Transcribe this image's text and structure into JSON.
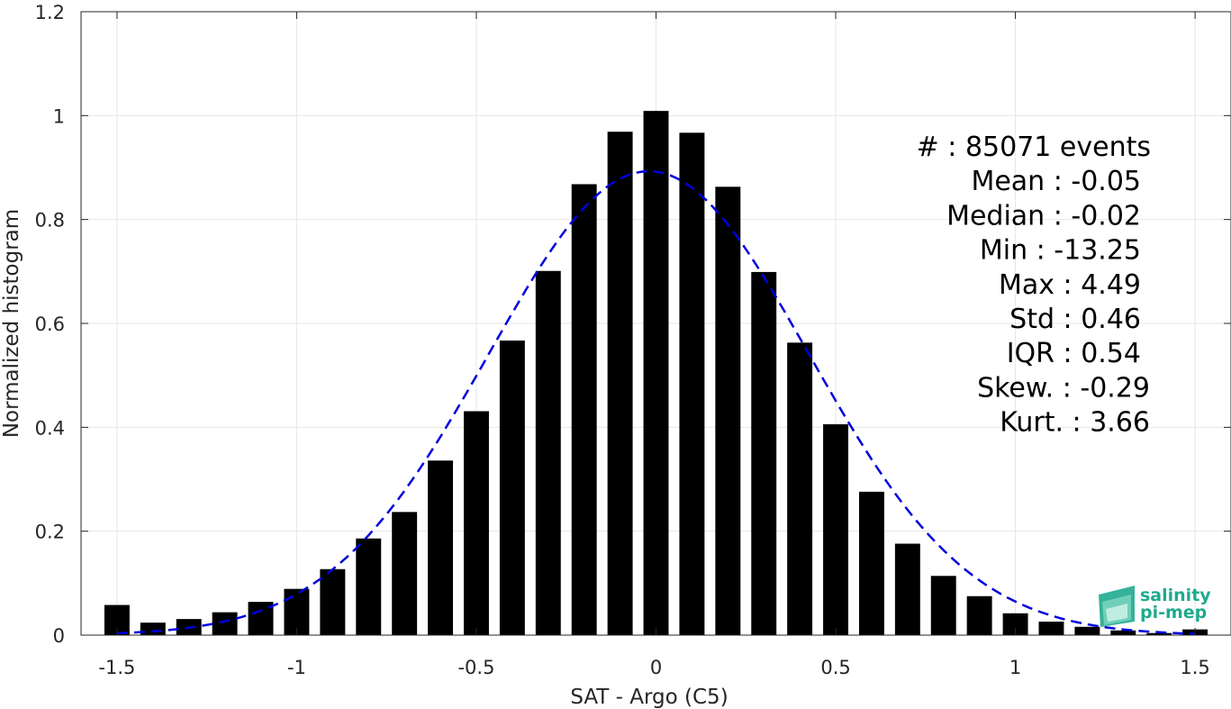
{
  "chart_data": {
    "type": "bar",
    "title": "",
    "xlabel": "SAT - Argo (C5)",
    "ylabel": "Normalized histogram",
    "xlim": [
      -1.6,
      1.6
    ],
    "ylim": [
      0,
      1.2
    ],
    "grid": true,
    "x_ticks": [
      -1.5,
      -1,
      -0.5,
      0,
      0.5,
      1,
      1.5
    ],
    "x_tick_labels": [
      "-1.5",
      "-1",
      "-0.5",
      "0",
      "0.5",
      "1",
      "1.5"
    ],
    "y_ticks": [
      0,
      0.2,
      0.4,
      0.6,
      0.8,
      1,
      1.2
    ],
    "y_tick_labels": [
      "0",
      "0.2",
      "0.4",
      "0.6",
      "0.8",
      "1",
      "1.2"
    ],
    "bar_width": 0.07,
    "bar_color": "#000000",
    "fit_line_color": "#0000dd",
    "x": [
      -1.5,
      -1.4,
      -1.3,
      -1.2,
      -1.1,
      -1.0,
      -0.9,
      -0.8,
      -0.7,
      -0.6,
      -0.5,
      -0.4,
      -0.3,
      -0.2,
      -0.1,
      0.0,
      0.1,
      0.2,
      0.3,
      0.4,
      0.5,
      0.6,
      0.7,
      0.8,
      0.9,
      1.0,
      1.1,
      1.2,
      1.3,
      1.4,
      1.5
    ],
    "values": [
      0.058,
      0.024,
      0.031,
      0.044,
      0.064,
      0.089,
      0.127,
      0.186,
      0.237,
      0.336,
      0.431,
      0.567,
      0.701,
      0.868,
      0.969,
      1.009,
      0.967,
      0.863,
      0.699,
      0.563,
      0.406,
      0.276,
      0.176,
      0.114,
      0.075,
      0.042,
      0.026,
      0.016,
      0.009,
      0.004,
      0.011
    ],
    "fit": {
      "type": "gaussian",
      "peak": 0.893,
      "mean": -0.02,
      "sigma": 0.445
    },
    "stats_lines": [
      "#  : 85071 events",
      "Mean : -0.05",
      "Median : -0.02",
      "Min : -13.25",
      "Max : 4.49",
      "Std : 0.46",
      "IQR : 0.54",
      "Skew. : -0.29",
      "Kurt. : 3.66"
    ]
  },
  "logo": {
    "line1": "salinity",
    "line2": "pi-mep",
    "color": "#1faa8e"
  }
}
